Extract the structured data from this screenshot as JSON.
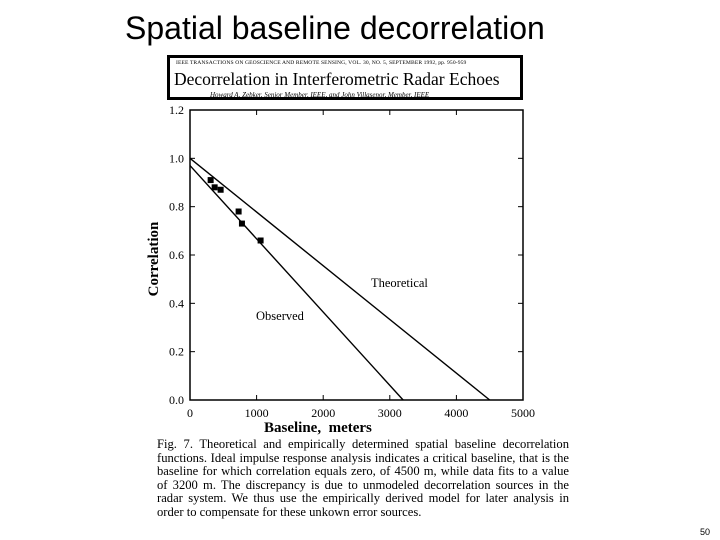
{
  "slide": {
    "title": "Spatial baseline decorrelation",
    "page_number": "50"
  },
  "paper": {
    "journal_line": "IEEE TRANSACTIONS ON GEOSCIENCE AND REMOTE SENSING, VOL. 30, NO. 5, SEPTEMBER 1992, pp. 950-959",
    "title": "Decorrelation in Interferometric Radar Echoes",
    "authors": "Howard A. Zebker, Senior Member, IEEE, and John Villasenor, Member, IEEE"
  },
  "caption": "Fig. 7. Theoretical and empirically determined spatial baseline decorrelation functions. Ideal impulse response analysis indicates a critical baseline, that is the baseline for which correlation equals zero, of 4500 m, while data fits to a value of 3200 m. The discrepancy is due to unmodeled decorrelation sources in the radar system. We thus use the empirically derived model for later analysis in order to compensate for these unkown error sources.",
  "chart_data": {
    "type": "line",
    "title": "",
    "xlabel": "Baseline,  meters",
    "ylabel": "Correlation",
    "xlim": [
      0,
      5000
    ],
    "ylim": [
      0,
      1.2
    ],
    "xticks": [
      0,
      1000,
      2000,
      3000,
      4000,
      5000
    ],
    "xtick_labels": [
      "0",
      "1000",
      "2000",
      "3000",
      "4000",
      "5000"
    ],
    "yticks": [
      0,
      0.2,
      0.4,
      0.6,
      0.8,
      1.0,
      1.2
    ],
    "ytick_labels": [
      "0.0",
      "0.2",
      "0.4",
      "0.6",
      "0.8",
      "1.0",
      "1.2"
    ],
    "grid": false,
    "legend": "none",
    "series": [
      {
        "name": "Theoretical",
        "x": [
          0,
          4500
        ],
        "y": [
          1.0,
          0.0
        ]
      },
      {
        "name": "Observed",
        "x": [
          0,
          3200
        ],
        "y": [
          0.97,
          0.0
        ]
      }
    ],
    "points": {
      "x": [
        310,
        370,
        460,
        730,
        780,
        1060
      ],
      "y": [
        0.91,
        0.88,
        0.87,
        0.78,
        0.73,
        0.66
      ]
    }
  }
}
